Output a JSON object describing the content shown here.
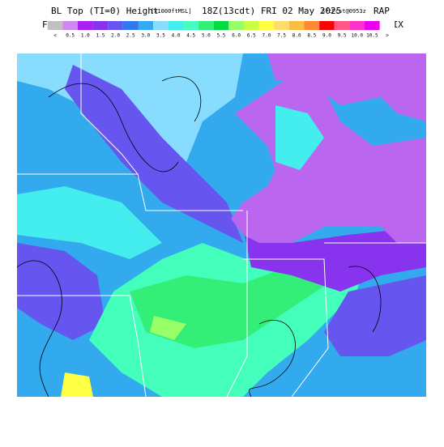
{
  "header": {
    "title": "BL Top (TI=0) Height",
    "units": "[x1000ftMSL]",
    "valid": "18Z(13cdt) FRI 02 May 2025",
    "issued": "SfcFcst@0953z",
    "model": "RAP"
  },
  "legend": {
    "left_label": "FIX",
    "right_label": "FIX",
    "items": [
      {
        "label": "<",
        "color": "#c0c0c0"
      },
      {
        "label": "0.5",
        "color": "#cc88ee"
      },
      {
        "label": "1.0",
        "color": "#aa22ee"
      },
      {
        "label": "1.5",
        "color": "#8833ee"
      },
      {
        "label": "2.0",
        "color": "#6655ee"
      },
      {
        "label": "2.5",
        "color": "#3377ee"
      },
      {
        "label": "3.0",
        "color": "#33aaee"
      },
      {
        "label": "3.5",
        "color": "#88ddff"
      },
      {
        "label": "4.0",
        "color": "#44eeee"
      },
      {
        "label": "4.5",
        "color": "#44ffbb"
      },
      {
        "label": "5.0",
        "color": "#33ee77"
      },
      {
        "label": "5.5",
        "color": "#00dd44"
      },
      {
        "label": "6.0",
        "color": "#99ff66"
      },
      {
        "label": "6.5",
        "color": "#ccff44"
      },
      {
        "label": "7.0",
        "color": "#ffff44"
      },
      {
        "label": "7.5",
        "color": "#ffdd66"
      },
      {
        "label": "8.0",
        "color": "#ffbb44"
      },
      {
        "label": "8.5",
        "color": "#ff8833"
      },
      {
        "label": "9.0",
        "color": "#ff0000"
      },
      {
        "label": "9.5",
        "color": "#ff5588"
      },
      {
        "label": "10.0",
        "color": "#ff33cc"
      },
      {
        "label": "10.5",
        "color": "#ee00ee"
      },
      {
        "label": ">",
        "color": "#ffffff"
      }
    ]
  }
}
